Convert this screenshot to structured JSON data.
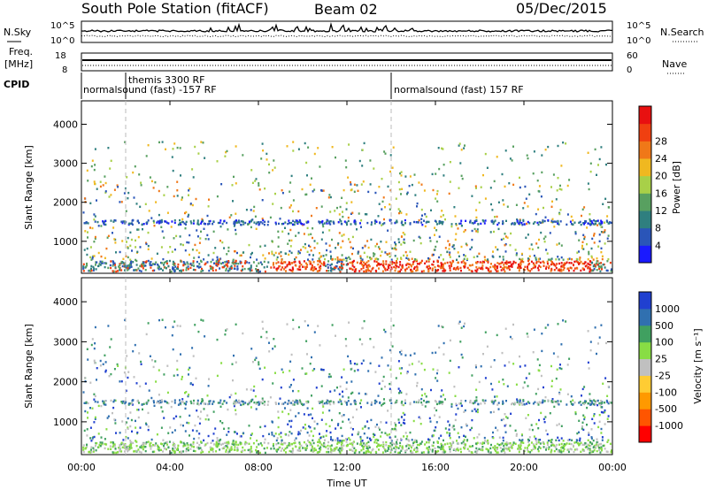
{
  "header": {
    "station": "South Pole Station (fitACF)",
    "beam": "Beam 02",
    "date": "05/Dec/2015"
  },
  "panels": {
    "nsky": {
      "label": "N.Sky",
      "left_ticks": [
        "10^5",
        "10^0"
      ],
      "right_ticks": [
        "10^5",
        "10^0"
      ],
      "right_label": "N.Search"
    },
    "freq": {
      "label_line1": "Freq.",
      "label_line2": "[MHz]",
      "left_ticks": [
        "18",
        "8"
      ],
      "right_ticks": [
        "60",
        "0"
      ],
      "right_label": "Nave"
    },
    "cpid": {
      "label": "CPID",
      "segments": [
        {
          "text": "normalsound (fast) -157 RF"
        },
        {
          "text": "themis 3300 RF"
        },
        {
          "text": "normalsound (fast) 157 RF"
        }
      ]
    }
  },
  "colors": {
    "power": [
      "#1a1aff",
      "#2a55b8",
      "#2f7f7f",
      "#58a060",
      "#a8d048",
      "#f0b820",
      "#f07818",
      "#f04010",
      "#e81010"
    ],
    "velocity": [
      "#ff0000",
      "#ff5500",
      "#ff9900",
      "#ffcc33",
      "#c0c0c0",
      "#88dd44",
      "#40a060",
      "#3070b0",
      "#2040d0"
    ]
  },
  "chart_data": [
    {
      "type": "heatmap",
      "title": "",
      "xlabel": "Time UT",
      "ylabel": "Slant Range [km]",
      "colorbar_label": "Power [dB]",
      "colorbar_ticks": [
        4,
        8,
        12,
        16,
        20,
        24,
        28
      ],
      "colorbar_range": [
        0,
        30
      ],
      "x_ticks": [
        "00:00",
        "04:00",
        "08:00",
        "12:00",
        "16:00",
        "20:00",
        "00:00"
      ],
      "xlim_hours": [
        0,
        24
      ],
      "y_ticks": [
        1000,
        2000,
        3000,
        4000
      ],
      "ylim": [
        180,
        4600
      ]
    },
    {
      "type": "heatmap",
      "title": "",
      "xlabel": "Time UT",
      "ylabel": "Slant Range [km]",
      "colorbar_label": "Velocity [m s⁻¹]",
      "colorbar_ticks": [
        1000,
        500,
        100,
        25,
        -25,
        -100,
        -500,
        -1000
      ],
      "x_ticks": [
        "00:00",
        "04:00",
        "08:00",
        "12:00",
        "16:00",
        "20:00",
        "00:00"
      ],
      "xlim_hours": [
        0,
        24
      ],
      "y_ticks": [
        1000,
        2000,
        3000,
        4000
      ],
      "ylim": [
        180,
        4600
      ]
    }
  ]
}
